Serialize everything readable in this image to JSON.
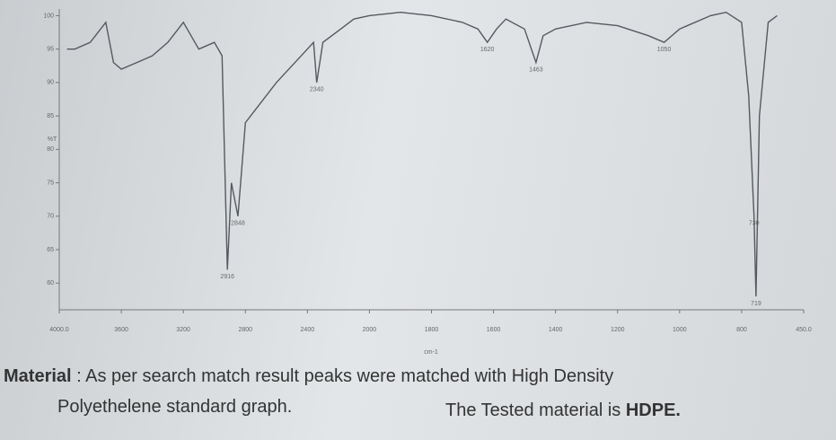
{
  "chart_data": {
    "type": "line",
    "ylabel": "%T",
    "xlabel": "cm-1",
    "color": "#555a60",
    "x": [
      3950,
      3900,
      3800,
      3700,
      3650,
      3600,
      3500,
      3400,
      3300,
      3200,
      3150,
      3100,
      3000,
      2950,
      2916,
      2890,
      2848,
      2800,
      2600,
      2400,
      2360,
      2340,
      2300,
      2100,
      2000,
      1900,
      1800,
      1700,
      1650,
      1620,
      1590,
      1560,
      1500,
      1463,
      1440,
      1400,
      1300,
      1200,
      1100,
      1050,
      1000,
      900,
      850,
      800,
      760,
      730,
      719,
      700,
      650,
      600
    ],
    "values": [
      95,
      95,
      96,
      99,
      93,
      92,
      93,
      94,
      96,
      99,
      97,
      95,
      96,
      94,
      62,
      75,
      70,
      84,
      90,
      95,
      96,
      90,
      96,
      99.5,
      100,
      100.5,
      100,
      99,
      98,
      96,
      98,
      99.5,
      98,
      93,
      97,
      98,
      99,
      98.5,
      97,
      96,
      98,
      100,
      100.5,
      99,
      88,
      70,
      58,
      85,
      99,
      100
    ],
    "annotations": [
      {
        "text": "2916",
        "x": 2916
      },
      {
        "text": "2848",
        "x": 2848
      },
      {
        "text": "2340",
        "x": 2340
      },
      {
        "text": "1620",
        "x": 1620
      },
      {
        "text": "1463",
        "x": 1463
      },
      {
        "text": "1050",
        "x": 1050
      },
      {
        "text": "730",
        "x": 730
      },
      {
        "text": "719",
        "x": 719
      }
    ],
    "xlim": [
      4000,
      450
    ],
    "xticks": [
      {
        "value": 4000,
        "label": "4000.0"
      },
      3600,
      3200,
      2800,
      2400,
      2000,
      1800,
      1600,
      1400,
      1200,
      1000,
      800,
      {
        "value": 450,
        "label": "450.0"
      }
    ],
    "ylim": [
      56,
      101
    ],
    "yticks": [
      60,
      65,
      70,
      75,
      80,
      85,
      90,
      95,
      100
    ],
    "note": {
      "label": "Material",
      "text1": " : As per search match result peaks were matched with High Density",
      "text2": "Polyethelene standard graph.",
      "text3": "The Tested material is ",
      "bold": "HDPE."
    }
  }
}
